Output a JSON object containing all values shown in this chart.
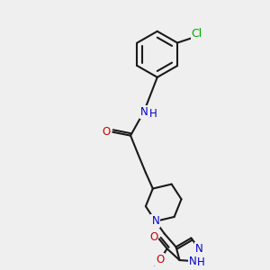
{
  "bg_color": "#efefef",
  "bond_color": "#1a1a1a",
  "bond_width": 1.5,
  "atom_colors": {
    "N": "#0000cc",
    "O": "#cc0000",
    "Cl": "#00aa00"
  },
  "font_size": 8.5,
  "fig_size": [
    3.0,
    3.0
  ],
  "dpi": 100
}
